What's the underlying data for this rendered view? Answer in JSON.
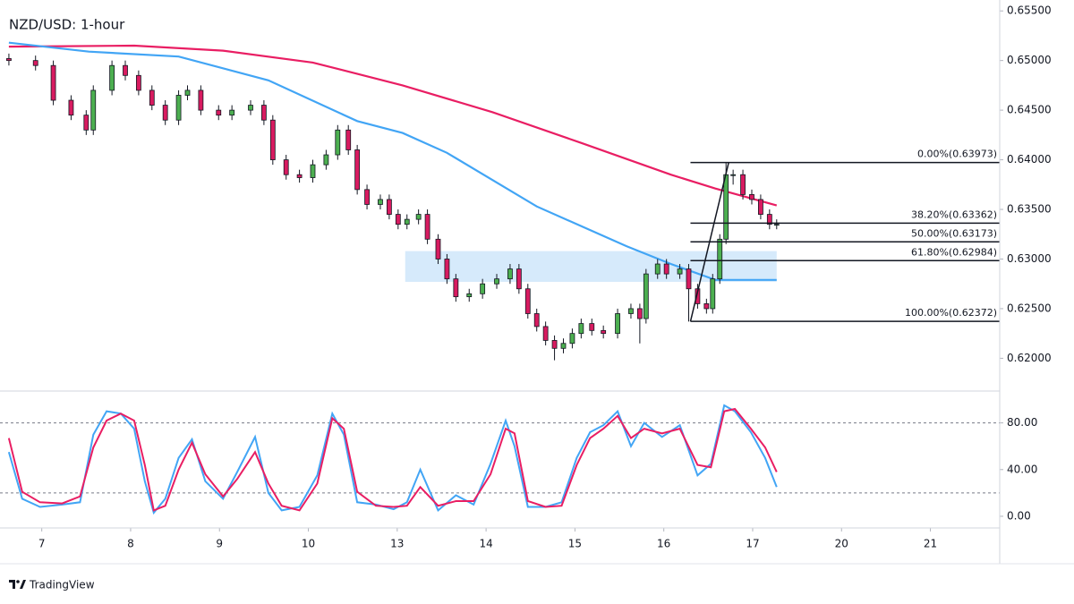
{
  "chart_data": [
    {
      "type": "candlestick",
      "title": "NZD/USD: 1-hour",
      "up_color": "#4caf50",
      "down_color": "#d81b60",
      "xlim": [
        -0.47,
        10.78
      ],
      "ylim": [
        0.6167,
        0.6561
      ],
      "yticks": [
        {
          "value": 0.62,
          "label": "0.62000"
        },
        {
          "value": 0.625,
          "label": "0.62500"
        },
        {
          "value": 0.63,
          "label": "0.63000"
        },
        {
          "value": 0.635,
          "label": "0.63500"
        },
        {
          "value": 0.64,
          "label": "0.64000"
        },
        {
          "value": 0.645,
          "label": "0.64500"
        },
        {
          "value": 0.65,
          "label": "0.65000"
        },
        {
          "value": 0.655,
          "label": "0.65500"
        }
      ],
      "x": [
        -0.37,
        -0.07,
        0.13,
        0.33,
        0.5,
        0.58,
        0.79,
        0.94,
        1.09,
        1.24,
        1.39,
        1.54,
        1.64,
        1.79,
        1.99,
        2.14,
        2.35,
        2.5,
        2.6,
        2.75,
        2.9,
        3.05,
        3.2,
        3.33,
        3.45,
        3.55,
        3.66,
        3.81,
        3.91,
        4.01,
        4.11,
        4.24,
        4.34,
        4.46,
        4.56,
        4.66,
        4.81,
        4.96,
        5.12,
        5.27,
        5.37,
        5.47,
        5.57,
        5.67,
        5.77,
        5.87,
        5.97,
        6.07,
        6.19,
        6.32,
        6.48,
        6.63,
        6.73,
        6.8,
        6.93,
        7.03,
        7.18,
        7.28,
        7.38,
        7.48,
        7.55,
        7.63,
        7.7,
        7.78,
        7.89,
        7.99,
        8.09,
        8.19,
        8.27
      ],
      "open": [
        0.6502,
        0.65,
        0.6495,
        0.646,
        0.6445,
        0.643,
        0.647,
        0.6495,
        0.6485,
        0.647,
        0.6455,
        0.644,
        0.6465,
        0.647,
        0.645,
        0.6445,
        0.645,
        0.6455,
        0.644,
        0.64,
        0.6385,
        0.6382,
        0.6395,
        0.6405,
        0.643,
        0.641,
        0.637,
        0.6355,
        0.636,
        0.6345,
        0.6335,
        0.634,
        0.6345,
        0.632,
        0.63,
        0.628,
        0.6262,
        0.6265,
        0.6275,
        0.628,
        0.629,
        0.627,
        0.6245,
        0.6232,
        0.6218,
        0.621,
        0.6215,
        0.6225,
        0.6235,
        0.6228,
        0.6225,
        0.6245,
        0.625,
        0.624,
        0.6285,
        0.6295,
        0.6285,
        0.629,
        0.627,
        0.6255,
        0.625,
        0.628,
        0.632,
        0.6385,
        0.6385,
        0.6365,
        0.636,
        0.6345,
        0.6335
      ],
      "high": [
        0.6507,
        0.6505,
        0.65,
        0.6465,
        0.645,
        0.6475,
        0.65,
        0.65,
        0.649,
        0.6475,
        0.646,
        0.647,
        0.6475,
        0.6475,
        0.6455,
        0.6455,
        0.646,
        0.646,
        0.6445,
        0.6405,
        0.639,
        0.64,
        0.641,
        0.6435,
        0.6435,
        0.6415,
        0.6375,
        0.6365,
        0.6365,
        0.635,
        0.6345,
        0.635,
        0.635,
        0.6325,
        0.6305,
        0.6285,
        0.627,
        0.628,
        0.6285,
        0.6295,
        0.6295,
        0.6275,
        0.625,
        0.6237,
        0.6223,
        0.622,
        0.623,
        0.624,
        0.624,
        0.6233,
        0.625,
        0.6255,
        0.6255,
        0.629,
        0.63,
        0.63,
        0.6295,
        0.6295,
        0.6275,
        0.626,
        0.6285,
        0.6325,
        0.6397,
        0.639,
        0.639,
        0.637,
        0.6365,
        0.635,
        0.634
      ],
      "low": [
        0.6495,
        0.649,
        0.6455,
        0.644,
        0.6425,
        0.6425,
        0.6465,
        0.648,
        0.6465,
        0.645,
        0.6435,
        0.6435,
        0.646,
        0.6445,
        0.644,
        0.644,
        0.6445,
        0.6435,
        0.6395,
        0.638,
        0.6377,
        0.6377,
        0.639,
        0.64,
        0.6405,
        0.6365,
        0.635,
        0.635,
        0.634,
        0.633,
        0.633,
        0.6335,
        0.6315,
        0.6295,
        0.6275,
        0.6257,
        0.6257,
        0.626,
        0.627,
        0.6275,
        0.6265,
        0.624,
        0.6227,
        0.6213,
        0.6198,
        0.6205,
        0.621,
        0.622,
        0.6223,
        0.622,
        0.622,
        0.624,
        0.6215,
        0.6235,
        0.628,
        0.628,
        0.628,
        0.6237,
        0.625,
        0.6245,
        0.6245,
        0.6275,
        0.6315,
        0.6375,
        0.636,
        0.6355,
        0.634,
        0.633,
        0.633
      ],
      "close": [
        0.65,
        0.6495,
        0.646,
        0.6445,
        0.643,
        0.647,
        0.6495,
        0.6485,
        0.647,
        0.6455,
        0.644,
        0.6465,
        0.647,
        0.645,
        0.6445,
        0.645,
        0.6455,
        0.644,
        0.64,
        0.6385,
        0.6382,
        0.6395,
        0.6405,
        0.643,
        0.641,
        0.637,
        0.6355,
        0.636,
        0.6345,
        0.6335,
        0.634,
        0.6345,
        0.632,
        0.63,
        0.628,
        0.6262,
        0.6265,
        0.6275,
        0.628,
        0.629,
        0.627,
        0.6245,
        0.6232,
        0.6218,
        0.621,
        0.6215,
        0.6225,
        0.6235,
        0.6228,
        0.6225,
        0.6245,
        0.625,
        0.624,
        0.6285,
        0.6295,
        0.6285,
        0.629,
        0.627,
        0.6255,
        0.625,
        0.628,
        0.632,
        0.6385,
        0.6385,
        0.6365,
        0.636,
        0.6345,
        0.6335,
        0.6335
      ],
      "moving_averages": [
        {
          "color": "#e91e63",
          "x": [
            -0.37,
            1.04,
            2.04,
            3.05,
            4.06,
            5.07,
            6.07,
            7.08,
            7.58,
            8.27
          ],
          "values": [
            0.6514,
            0.6515,
            0.651,
            0.6498,
            0.6475,
            0.6448,
            0.6417,
            0.6385,
            0.6371,
            0.6354
          ]
        },
        {
          "color": "#42a5f5",
          "x": [
            -0.37,
            0.53,
            1.54,
            2.55,
            3.55,
            4.06,
            4.56,
            5.57,
            6.58,
            7.08,
            7.58,
            8.27
          ],
          "values": [
            0.6518,
            0.6509,
            0.6504,
            0.648,
            0.6439,
            0.6427,
            0.6407,
            0.6353,
            0.6313,
            0.6295,
            0.6279,
            0.6279
          ]
        }
      ],
      "zone": {
        "x": [
          4.09,
          8.27
        ],
        "y": [
          0.6277,
          0.6308
        ],
        "color": "#d6eafb"
      },
      "fib_anchor_x": [
        7.3,
        7.73
      ],
      "fib_levels": [
        {
          "value": 0.63973,
          "label": "0.00%(0.63973)"
        },
        {
          "value": 0.63362,
          "label": "38.20%(0.63362)"
        },
        {
          "value": 0.63173,
          "label": "50.00%(0.63173)"
        },
        {
          "value": 0.62984,
          "label": "61.80%(0.62984)"
        },
        {
          "value": 0.62372,
          "label": "100.00%(0.62372)"
        }
      ]
    },
    {
      "type": "line",
      "xlim": [
        -0.47,
        10.78
      ],
      "ylim": [
        -10,
        105
      ],
      "yticks": [
        {
          "value": 0,
          "label": "0.00"
        },
        {
          "value": 40,
          "label": "40.00"
        },
        {
          "value": 80,
          "label": "80.00"
        }
      ],
      "bands": [
        20,
        80
      ],
      "xticks": [
        {
          "value": 0,
          "label": "7"
        },
        {
          "value": 1,
          "label": "8"
        },
        {
          "value": 2,
          "label": "9"
        },
        {
          "value": 3,
          "label": "10"
        },
        {
          "value": 4,
          "label": "13"
        },
        {
          "value": 5,
          "label": "14"
        },
        {
          "value": 6,
          "label": "15"
        },
        {
          "value": 7,
          "label": "16"
        },
        {
          "value": 8,
          "label": "17"
        },
        {
          "value": 9,
          "label": "20"
        },
        {
          "value": 10,
          "label": "21"
        }
      ],
      "x": [
        -0.37,
        -0.22,
        -0.02,
        0.23,
        0.43,
        0.58,
        0.73,
        0.89,
        1.04,
        1.16,
        1.26,
        1.39,
        1.54,
        1.69,
        1.84,
        2.04,
        2.2,
        2.4,
        2.55,
        2.7,
        2.9,
        3.1,
        3.27,
        3.4,
        3.55,
        3.76,
        3.96,
        4.11,
        4.26,
        4.46,
        4.66,
        4.86,
        5.05,
        5.22,
        5.32,
        5.47,
        5.67,
        5.85,
        6.02,
        6.17,
        6.32,
        6.48,
        6.63,
        6.78,
        6.98,
        7.18,
        7.38,
        7.53,
        7.68,
        7.8,
        7.98,
        8.14,
        8.27
      ],
      "series": [
        {
          "color": "#42a5f5",
          "values": [
            55,
            15,
            8,
            10,
            12,
            70,
            90,
            88,
            75,
            30,
            3,
            15,
            50,
            66,
            30,
            15,
            38,
            68,
            20,
            5,
            8,
            35,
            88,
            70,
            12,
            10,
            6,
            12,
            40,
            5,
            18,
            10,
            45,
            82,
            60,
            8,
            8,
            12,
            50,
            72,
            78,
            90,
            60,
            80,
            68,
            78,
            35,
            45,
            95,
            90,
            72,
            50,
            25
          ]
        },
        {
          "color": "#e91e63",
          "values": [
            67,
            21,
            12,
            11,
            17,
            59,
            82,
            88,
            82,
            44,
            5,
            9,
            40,
            63,
            36,
            17,
            32,
            55,
            28,
            9,
            5,
            28,
            84,
            75,
            21,
            9,
            8,
            9,
            25,
            9,
            13,
            13,
            36,
            75,
            71,
            13,
            8,
            9,
            44,
            67,
            75,
            86,
            67,
            75,
            71,
            75,
            44,
            42,
            90,
            92,
            75,
            59,
            38
          ]
        }
      ]
    }
  ],
  "footer": {
    "brand": "TradingView"
  }
}
